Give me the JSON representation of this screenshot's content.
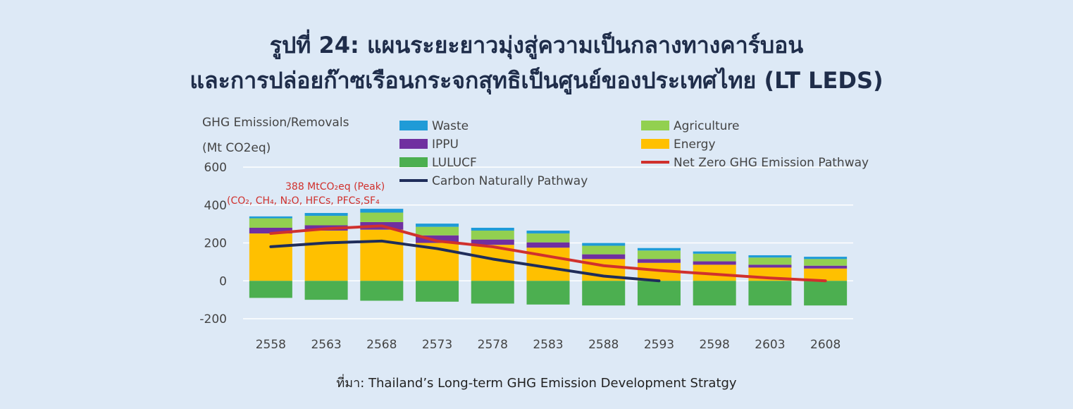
{
  "title_line1": "รูปที่ 24: แผนระยะยาวมุ่งสู่ความเป็นกลางทางคาร์บอน",
  "title_line2": "และการปล่อยก๊าซเรือนกระจกสุทธิเป็นศูนย์ของประเทศไทย (LT LEDS)",
  "source": "ที่มา: Thailand’s Long-term GHG Emission Development Stratgy",
  "chart_data": {
    "type": "bar",
    "stacked": true,
    "ylabel_line1": "GHG Emission/Removals",
    "ylabel_line2": "(Mt CO2eq)",
    "ylim": [
      -200,
      600
    ],
    "yticks": [
      600,
      400,
      200,
      0,
      -200
    ],
    "grid": true,
    "categories": [
      "2558",
      "2563",
      "2568",
      "2573",
      "2578",
      "2583",
      "2588",
      "2593",
      "2598",
      "2603",
      "2608"
    ],
    "series": [
      {
        "name": "Energy",
        "color": "#ffc000",
        "values": [
          250,
          265,
          270,
          200,
          190,
          175,
          115,
          95,
          85,
          70,
          65
        ]
      },
      {
        "name": "IPPU",
        "color": "#7030a0",
        "values": [
          30,
          28,
          40,
          40,
          28,
          28,
          25,
          20,
          18,
          15,
          15
        ]
      },
      {
        "name": "Agriculture",
        "color": "#92d050",
        "values": [
          50,
          50,
          50,
          45,
          47,
          47,
          45,
          45,
          40,
          38,
          35
        ]
      },
      {
        "name": "Waste",
        "color": "#1f9bd7",
        "values": [
          10,
          15,
          20,
          17,
          15,
          15,
          15,
          13,
          12,
          12,
          12
        ]
      },
      {
        "name": "LULUCF",
        "color": "#4caf50",
        "values": [
          -90,
          -100,
          -105,
          -110,
          -120,
          -125,
          -130,
          -130,
          -130,
          -130,
          -130
        ]
      }
    ],
    "lines": [
      {
        "name": "Net Zero GHG Emission Pathway",
        "color": "#d0312d",
        "values": [
          250,
          275,
          290,
          210,
          180,
          130,
          80,
          55,
          35,
          15,
          0
        ]
      },
      {
        "name": "Carbon Naturally Pathway",
        "color": "#1f2d5a",
        "values": [
          180,
          200,
          210,
          170,
          115,
          70,
          25,
          0,
          null,
          null,
          null
        ]
      }
    ],
    "annotation_line1": "388 MtCO₂eq (Peak)",
    "annotation_line2": "(CO₂, CH₄, N₂O, HFCs, PFCs,SF₄",
    "annotation_color": "#d0312d"
  }
}
